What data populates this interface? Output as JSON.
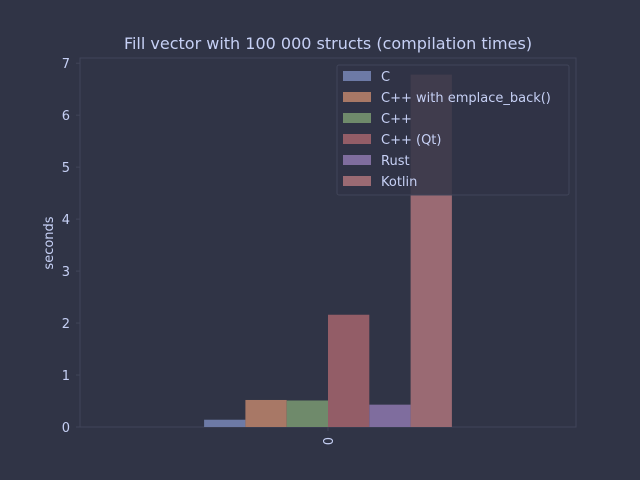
{
  "chart_data": {
    "type": "bar",
    "title": "Fill vector with 100 000 structs (compilation times)",
    "xlabel": "",
    "ylabel": "seconds",
    "categories": [
      "0"
    ],
    "ylim": [
      0,
      7.1
    ],
    "yticks": [
      "0",
      "1",
      "2",
      "3",
      "4",
      "5",
      "6",
      "7"
    ],
    "grid": false,
    "legend_position": "top-right",
    "series": [
      {
        "name": "C",
        "values": [
          0.14
        ],
        "color": "#6d7aa6"
      },
      {
        "name": "C++ with emplace_back()",
        "values": [
          0.52
        ],
        "color": "#a87866"
      },
      {
        "name": "C++",
        "values": [
          0.51
        ],
        "color": "#6f8a6b"
      },
      {
        "name": "C++ (Qt)",
        "values": [
          2.16
        ],
        "color": "#935d67"
      },
      {
        "name": "Rust",
        "values": [
          0.43
        ],
        "color": "#7f6d9e"
      },
      {
        "name": "Kotlin",
        "values": [
          6.78
        ],
        "color": "#9a6a73"
      }
    ]
  },
  "colors": {
    "background": "#303446",
    "axes_edge": "#414559",
    "text": "#c6d0f5",
    "legend_bg": "#303446"
  }
}
